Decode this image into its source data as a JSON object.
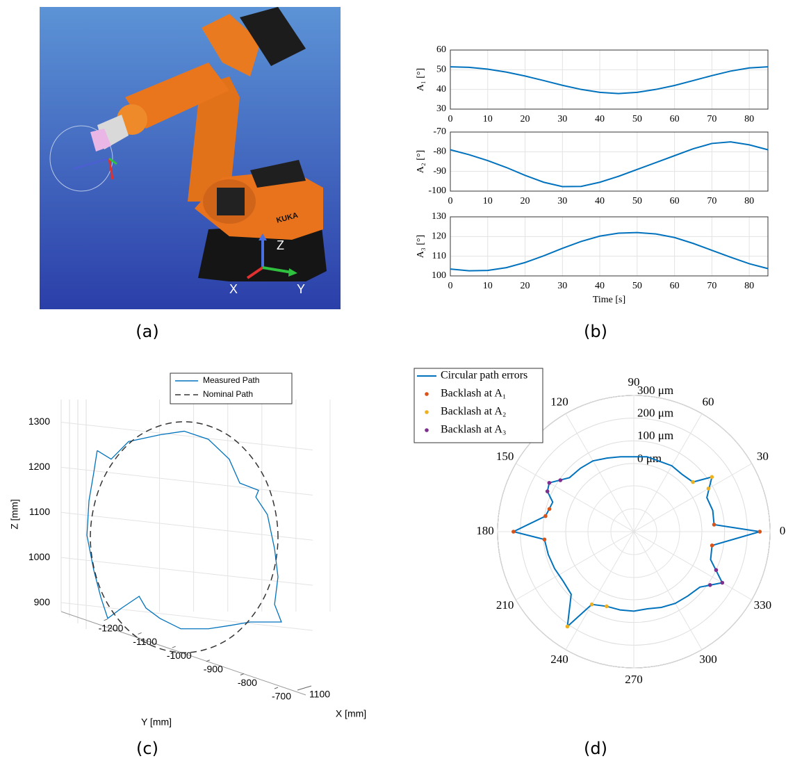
{
  "captions": [
    "(a)",
    "(b)",
    "(c)",
    "(d)"
  ],
  "panel_a": {
    "axis_labels": [
      "Z",
      "X",
      "Y"
    ],
    "brand": "KUKA"
  },
  "chart_data": [
    {
      "type": "line",
      "ylabel": "A₁ [°]",
      "color": "#0072bd",
      "grid": true,
      "x": [
        0,
        5,
        10,
        15,
        20,
        25,
        30,
        35,
        40,
        45,
        50,
        55,
        60,
        65,
        70,
        75,
        80,
        85
      ],
      "values": [
        51.5,
        51.2,
        50.3,
        48.8,
        46.8,
        44.5,
        42.1,
        40.0,
        38.5,
        37.9,
        38.5,
        40.0,
        42.0,
        44.5,
        47.0,
        49.3,
        50.9,
        51.5
      ],
      "xlim": [
        0,
        85
      ],
      "xticks": [
        0,
        10,
        20,
        30,
        40,
        50,
        60,
        70,
        80
      ],
      "ylim": [
        30,
        60
      ],
      "yticks": [
        30,
        40,
        50,
        60
      ]
    },
    {
      "type": "line",
      "ylabel": "A₂ [°]",
      "color": "#0072bd",
      "grid": true,
      "x": [
        0,
        5,
        10,
        15,
        20,
        25,
        30,
        35,
        40,
        45,
        50,
        55,
        60,
        65,
        70,
        75,
        80,
        85
      ],
      "values": [
        -79,
        -81.5,
        -84.5,
        -88,
        -92,
        -95.5,
        -97.7,
        -97.6,
        -95.5,
        -92.5,
        -89,
        -85.5,
        -82,
        -78.5,
        -75.8,
        -75,
        -76.5,
        -79
      ],
      "xlim": [
        0,
        85
      ],
      "xticks": [
        0,
        10,
        20,
        30,
        40,
        50,
        60,
        70,
        80
      ],
      "ylim": [
        -100,
        -70
      ],
      "yticks": [
        -100,
        -90,
        -80,
        -70
      ]
    },
    {
      "type": "line",
      "ylabel": "A₃ [°]",
      "xlabel": "Time [s]",
      "color": "#0072bd",
      "grid": true,
      "x": [
        0,
        5,
        10,
        15,
        20,
        25,
        30,
        35,
        40,
        45,
        50,
        55,
        60,
        65,
        70,
        75,
        80,
        85
      ],
      "values": [
        103.5,
        102.6,
        102.8,
        104.2,
        106.8,
        110.2,
        114,
        117.5,
        120.2,
        121.7,
        122,
        121.3,
        119.5,
        116.5,
        113,
        109.5,
        106.2,
        103.7
      ],
      "xlim": [
        0,
        85
      ],
      "xticks": [
        0,
        10,
        20,
        30,
        40,
        50,
        60,
        70,
        80
      ],
      "ylim": [
        100,
        130
      ],
      "yticks": [
        100,
        110,
        120,
        130
      ]
    },
    {
      "type": "path3d",
      "xlabel": "Y [mm]",
      "ylabel": "Z [mm]",
      "zlabel": "X [mm]",
      "grid": true,
      "legend": "upper right",
      "xlim": [
        -1250,
        -700
      ],
      "xticks": [
        -1200,
        -1100,
        -1000,
        -900,
        -800,
        -700
      ],
      "ylim": [
        800,
        1350
      ],
      "yticks": [
        900,
        1000,
        1100,
        1200,
        1300
      ],
      "zticks": [
        1100
      ],
      "series": [
        {
          "name": "Measured Path",
          "color": "#0072bd",
          "dashed": false,
          "x": [
            -1230,
            -1189,
            -1138,
            -1046,
            -975,
            -904,
            -843,
            -812,
            -757,
            -765,
            -731,
            -710,
            -700,
            -710,
            -690,
            -731,
            -781,
            -843,
            -904,
            -985,
            -1046,
            -1087,
            -1107,
            -1158,
            -1199,
            -1219,
            -1240,
            -1260,
            -1254,
            -1240,
            -1230
          ],
          "values": [
            1237,
            1218,
            1257,
            1272,
            1280,
            1262,
            1218,
            1165,
            1149,
            1134,
            1095,
            1019,
            957,
            896,
            857,
            857,
            857,
            849,
            842,
            842,
            865,
            888,
            914,
            888,
            865,
            911,
            972,
            1049,
            1126,
            1188,
            1237
          ]
        },
        {
          "name": "Nominal Path",
          "color": "#333333",
          "dashed": true,
          "x": [
            -700,
            -737,
            -838,
            -975,
            -1113,
            -1213,
            -1250,
            -1213,
            -1113,
            -975,
            -838,
            -737
          ],
          "values": [
            1045,
            1173,
            1267,
            1301,
            1267,
            1173,
            1045,
            917,
            823,
            789,
            823,
            917
          ]
        }
      ]
    },
    {
      "type": "polar",
      "legend": "upper left",
      "grid": true,
      "thetaticks": [
        0,
        30,
        60,
        90,
        120,
        150,
        180,
        210,
        240,
        270,
        300,
        330
      ],
      "rlim": [
        -300,
        300
      ],
      "rticks": [
        {
          "value": 0,
          "label": "0 μm"
        },
        {
          "value": 100,
          "label": "100 μm"
        },
        {
          "value": 200,
          "label": "200 μm"
        },
        {
          "value": 300,
          "label": "300 μm"
        }
      ],
      "series": [
        {
          "name": "Circular path errors",
          "color": "#0072bd",
          "mode": "line",
          "theta": [
            0,
            5,
            15,
            25,
            35,
            40,
            50,
            60,
            70,
            80,
            90,
            100,
            110,
            120,
            130,
            140,
            150,
            155,
            160,
            170,
            180,
            185,
            195,
            205,
            215,
            225,
            235,
            240,
            250,
            260,
            270,
            280,
            290,
            300,
            310,
            320,
            330,
            340,
            350
          ],
          "values": [
            255,
            55,
            60,
            55,
            120,
            40,
            30,
            35,
            30,
            35,
            30,
            35,
            45,
            60,
            65,
            70,
            130,
            120,
            80,
            95,
            230,
            95,
            90,
            85,
            80,
            90,
            210,
            70,
            50,
            50,
            50,
            45,
            55,
            65,
            70,
            80,
            150,
            60,
            50
          ]
        },
        {
          "name": "Backlash at A₁",
          "color": "#d95319",
          "mode": "markers",
          "theta": [
            0,
            5,
            350,
            180,
            170,
            185,
            165
          ],
          "values": [
            255,
            55,
            50,
            230,
            95,
            95,
            85
          ]
        },
        {
          "name": "Backlash at A₂",
          "color": "#edb120",
          "mode": "markers",
          "theta": [
            35,
            40,
            30,
            235,
            240,
            250
          ],
          "values": [
            120,
            40,
            80,
            210,
            70,
            50
          ]
        },
        {
          "name": "Backlash at A₃",
          "color": "#7e2f8e",
          "mode": "markers",
          "theta": [
            150,
            155,
            145,
            330,
            325,
            335
          ],
          "values": [
            130,
            120,
            95,
            150,
            110,
            100
          ]
        }
      ]
    }
  ]
}
